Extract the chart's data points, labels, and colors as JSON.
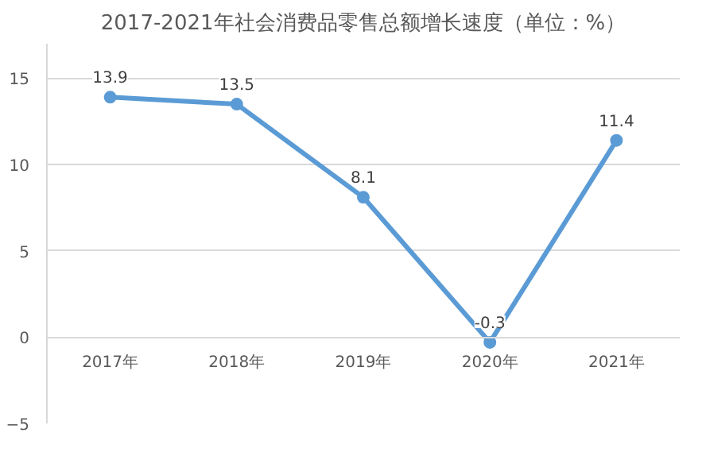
{
  "chart_data": {
    "type": "line",
    "title": "2017-2021年社会消费品零售总额增长速度（单位：%）",
    "categories": [
      "2017年",
      "2018年",
      "2019年",
      "2020年",
      "2021年"
    ],
    "series": [
      {
        "color": "#5b9bd5",
        "values": [
          13.9,
          13.5,
          8.1,
          -0.3,
          11.4
        ]
      }
    ],
    "ylim": [
      -5,
      17
    ],
    "yticks": [
      -5,
      0,
      5,
      10,
      15
    ],
    "grid": "y",
    "marker": "circle",
    "line_style": "solid",
    "data_labels": true
  }
}
